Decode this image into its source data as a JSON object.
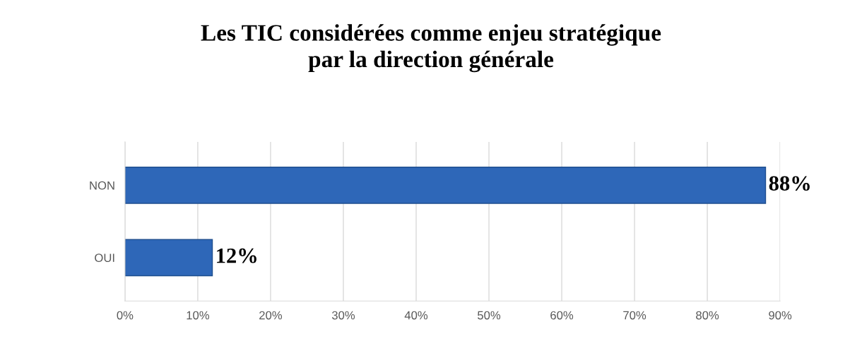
{
  "chart_data": {
    "type": "bar",
    "orientation": "horizontal",
    "title": "Les TIC considérées comme enjeu stratégique\npar la direction générale",
    "categories": [
      "NON",
      "OUI"
    ],
    "values": [
      88,
      12
    ],
    "value_labels": [
      "88%",
      "12%"
    ],
    "color": "#2e67b8",
    "xlim": [
      0,
      90
    ],
    "xticks": [
      {
        "value": 0,
        "label": "0%"
      },
      {
        "value": 10,
        "label": "10%"
      },
      {
        "value": 20,
        "label": "20%"
      },
      {
        "value": 30,
        "label": "30%"
      },
      {
        "value": 40,
        "label": "40%"
      },
      {
        "value": 50,
        "label": "50%"
      },
      {
        "value": 60,
        "label": "60%"
      },
      {
        "value": 70,
        "label": "70%"
      },
      {
        "value": 80,
        "label": "80%"
      },
      {
        "value": 90,
        "label": "90%"
      }
    ],
    "grid": "x"
  }
}
